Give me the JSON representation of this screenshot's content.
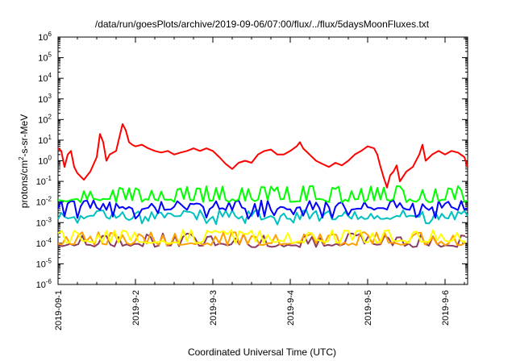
{
  "chart_data": {
    "type": "line",
    "title": "/data/run/goesPlots/archive/2019-09-06/07:00/flux/../flux/5daysMoonFluxes.txt",
    "xlabel": "Coordinated Universal Time (UTC)",
    "ylabel": {
      "pre": "protons/cm",
      "sup": "2",
      "post": "-s-sr-MeV"
    },
    "y_scale": "log",
    "ylim": [
      1e-06,
      1000000.0
    ],
    "xlim": [
      "2019-09-01 00:00",
      "2019-09-06 07:00"
    ],
    "x_ticks": [
      "2019-09-1",
      "2019-9-2",
      "2019-9-3",
      "2019-9-4",
      "2019-9-5",
      "2019-9-6"
    ],
    "y_ticks": [
      {
        "base": "10",
        "exp": "-6"
      },
      {
        "base": "10",
        "exp": "-5"
      },
      {
        "base": "10",
        "exp": "-4"
      },
      {
        "base": "10",
        "exp": "-3"
      },
      {
        "base": "10",
        "exp": "-2"
      },
      {
        "base": "10",
        "exp": "-1"
      },
      {
        "base": "10",
        "exp": "0"
      },
      {
        "base": "10",
        "exp": "1"
      },
      {
        "base": "10",
        "exp": "2"
      },
      {
        "base": "10",
        "exp": "3"
      },
      {
        "base": "10",
        "exp": "4"
      },
      {
        "base": "10",
        "exp": "5"
      },
      {
        "base": "10",
        "exp": "6"
      }
    ],
    "grid": false,
    "legend": "none",
    "series": [
      {
        "color": "#ff0000",
        "points": [
          [
            "2019-09-01 00:00",
            4
          ],
          [
            "2019-09-01 01:00",
            3
          ],
          [
            "2019-09-01 02:00",
            0.5
          ],
          [
            "2019-09-01 03:00",
            2
          ],
          [
            "2019-09-01 04:00",
            3
          ],
          [
            "2019-09-01 05:00",
            0.5
          ],
          [
            "2019-09-01 06:00",
            0.25
          ],
          [
            "2019-09-01 08:00",
            0.12
          ],
          [
            "2019-09-01 10:00",
            0.3
          ],
          [
            "2019-09-01 12:00",
            1.5
          ],
          [
            "2019-09-01 13:00",
            20
          ],
          [
            "2019-09-01 14:00",
            8
          ],
          [
            "2019-09-01 15:00",
            1
          ],
          [
            "2019-09-01 16:00",
            2
          ],
          [
            "2019-09-01 18:00",
            3
          ],
          [
            "2019-09-01 20:00",
            60
          ],
          [
            "2019-09-01 21:00",
            30
          ],
          [
            "2019-09-01 22:00",
            8
          ],
          [
            "2019-09-01 23:00",
            6
          ],
          [
            "2019-09-02 00:00",
            5
          ],
          [
            "2019-09-02 02:00",
            6
          ],
          [
            "2019-09-02 04:00",
            4
          ],
          [
            "2019-09-02 06:00",
            3
          ],
          [
            "2019-09-02 08:00",
            2.5
          ],
          [
            "2019-09-02 10:00",
            3
          ],
          [
            "2019-09-02 12:00",
            2
          ],
          [
            "2019-09-02 14:00",
            2.5
          ],
          [
            "2019-09-02 16:00",
            3
          ],
          [
            "2019-09-02 18:00",
            4
          ],
          [
            "2019-09-02 20:00",
            3
          ],
          [
            "2019-09-02 22:00",
            4
          ],
          [
            "2019-09-03 00:00",
            3
          ],
          [
            "2019-09-03 02:00",
            1.5
          ],
          [
            "2019-09-03 04:00",
            0.7
          ],
          [
            "2019-09-03 06:00",
            0.4
          ],
          [
            "2019-09-03 08:00",
            0.8
          ],
          [
            "2019-09-03 10:00",
            1
          ],
          [
            "2019-09-03 12:00",
            0.8
          ],
          [
            "2019-09-03 14:00",
            2
          ],
          [
            "2019-09-03 16:00",
            3
          ],
          [
            "2019-09-03 18:00",
            3.5
          ],
          [
            "2019-09-03 20:00",
            2
          ],
          [
            "2019-09-03 22:00",
            2
          ],
          [
            "2019-09-04 00:00",
            3
          ],
          [
            "2019-09-04 02:00",
            5
          ],
          [
            "2019-09-04 03:00",
            8
          ],
          [
            "2019-09-04 04:00",
            4
          ],
          [
            "2019-09-04 06:00",
            2
          ],
          [
            "2019-09-04 08:00",
            1
          ],
          [
            "2019-09-04 10:00",
            0.7
          ],
          [
            "2019-09-04 12:00",
            0.5
          ],
          [
            "2019-09-04 14:00",
            0.8
          ],
          [
            "2019-09-04 16:00",
            0.6
          ],
          [
            "2019-09-04 18:00",
            1
          ],
          [
            "2019-09-04 20:00",
            2
          ],
          [
            "2019-09-04 22:00",
            3
          ],
          [
            "2019-09-05 00:00",
            5
          ],
          [
            "2019-09-05 02:00",
            4
          ],
          [
            "2019-09-05 03:00",
            2
          ],
          [
            "2019-09-05 04:00",
            0.5
          ],
          [
            "2019-09-05 05:00",
            0.15
          ],
          [
            "2019-09-05 06:00",
            0.05
          ],
          [
            "2019-09-05 07:00",
            0.2
          ],
          [
            "2019-09-05 08:00",
            0.3
          ],
          [
            "2019-09-05 09:00",
            0.6
          ],
          [
            "2019-09-05 10:00",
            0.1
          ],
          [
            "2019-09-05 12:00",
            0.3
          ],
          [
            "2019-09-05 14:00",
            0.5
          ],
          [
            "2019-09-05 16:00",
            2
          ],
          [
            "2019-09-05 17:00",
            6
          ],
          [
            "2019-09-05 18:00",
            1
          ],
          [
            "2019-09-05 20:00",
            2
          ],
          [
            "2019-09-05 22:00",
            3
          ],
          [
            "2019-09-06 00:00",
            2
          ],
          [
            "2019-09-06 02:00",
            3
          ],
          [
            "2019-09-06 04:00",
            2.5
          ],
          [
            "2019-09-06 06:00",
            1.5
          ],
          [
            "2019-09-06 07:00",
            0.5
          ]
        ]
      },
      {
        "color": "#00ff00",
        "baseline": 0.012,
        "peak": 0.06,
        "period_h": 2
      },
      {
        "color": "#0000ff",
        "baseline": 0.005,
        "peak": 0.012,
        "trough": 0.0015,
        "period_h": 2
      },
      {
        "color": "#00c0c0",
        "baseline": 0.0018,
        "peak": 0.004,
        "trough": 0.0008,
        "period_h": 2
      },
      {
        "color": "#ffff00",
        "baseline": 0.00012,
        "peak": 0.00045,
        "period_h": 2.5
      },
      {
        "color": "#ffa000",
        "baseline": 0.0001,
        "peak": 0.00035,
        "period_h": 2.5
      },
      {
        "color": "#8b3a62",
        "baseline": 8e-05,
        "peak": 0.0003,
        "period_h": 2.5
      }
    ]
  }
}
